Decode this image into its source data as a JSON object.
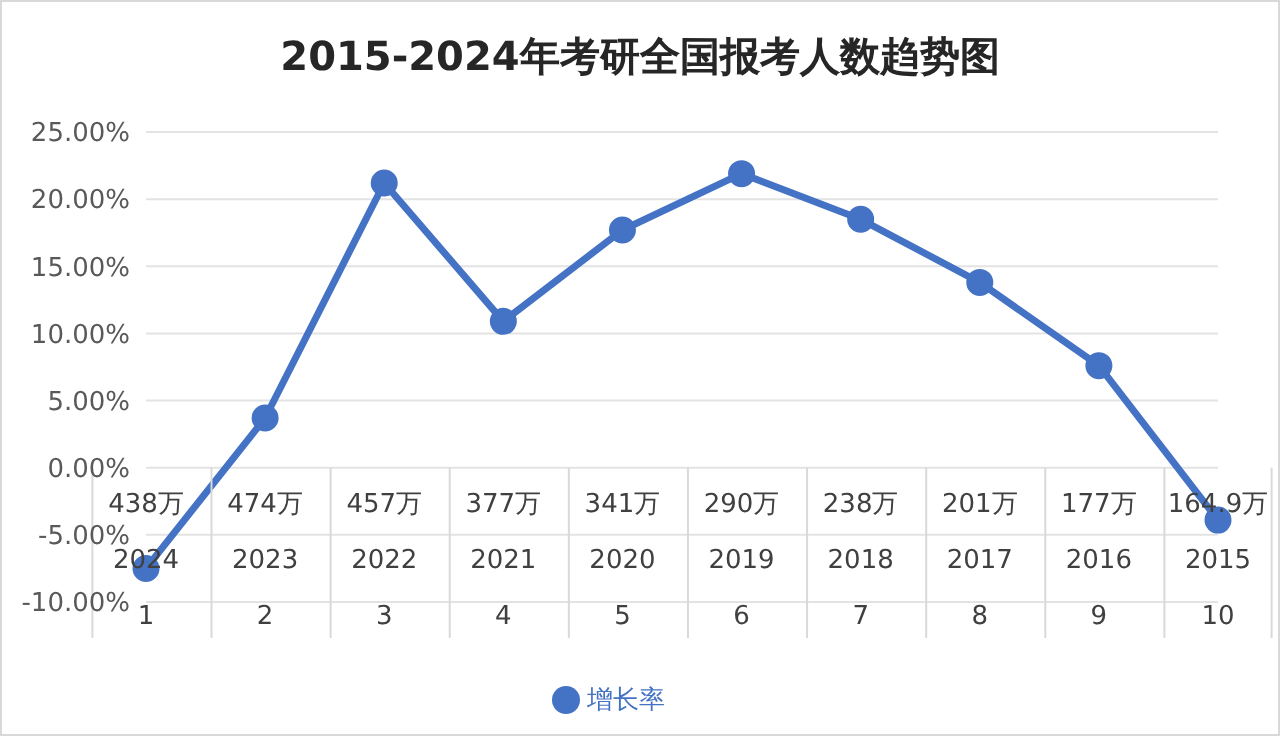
{
  "chart_data": {
    "type": "line",
    "title": "2015-2024年考研全国报考人数趋势图",
    "categories": [
      [
        "438万",
        "2024",
        "1"
      ],
      [
        "474万",
        "2023",
        "2"
      ],
      [
        "457万",
        "2022",
        "3"
      ],
      [
        "377万",
        "2021",
        "4"
      ],
      [
        "341万",
        "2020",
        "5"
      ],
      [
        "290万",
        "2019",
        "6"
      ],
      [
        "238万",
        "2018",
        "7"
      ],
      [
        "201万",
        "2017",
        "8"
      ],
      [
        "177万",
        "2016",
        "9"
      ],
      [
        "164.9万",
        "2015",
        "10"
      ]
    ],
    "series": [
      {
        "name": "增长率",
        "color": "#4472c4",
        "values": [
          -7.5,
          3.7,
          21.2,
          10.9,
          17.7,
          21.9,
          18.5,
          13.8,
          7.6,
          -3.9
        ]
      }
    ],
    "ylim": [
      -10,
      25
    ],
    "yticks": [
      {
        "value": -10,
        "label": "-10.00%"
      },
      {
        "value": -5,
        "label": "-5.00%"
      },
      {
        "value": 0,
        "label": "0.00%"
      },
      {
        "value": 5,
        "label": "5.00%"
      },
      {
        "value": 10,
        "label": "10.00%"
      },
      {
        "value": 15,
        "label": "15.00%"
      },
      {
        "value": 20,
        "label": "20.00%"
      },
      {
        "value": 25,
        "label": "25.00%"
      }
    ],
    "grid": "y",
    "legend": "bottom",
    "marker": "circle",
    "line_style": "solid"
  }
}
